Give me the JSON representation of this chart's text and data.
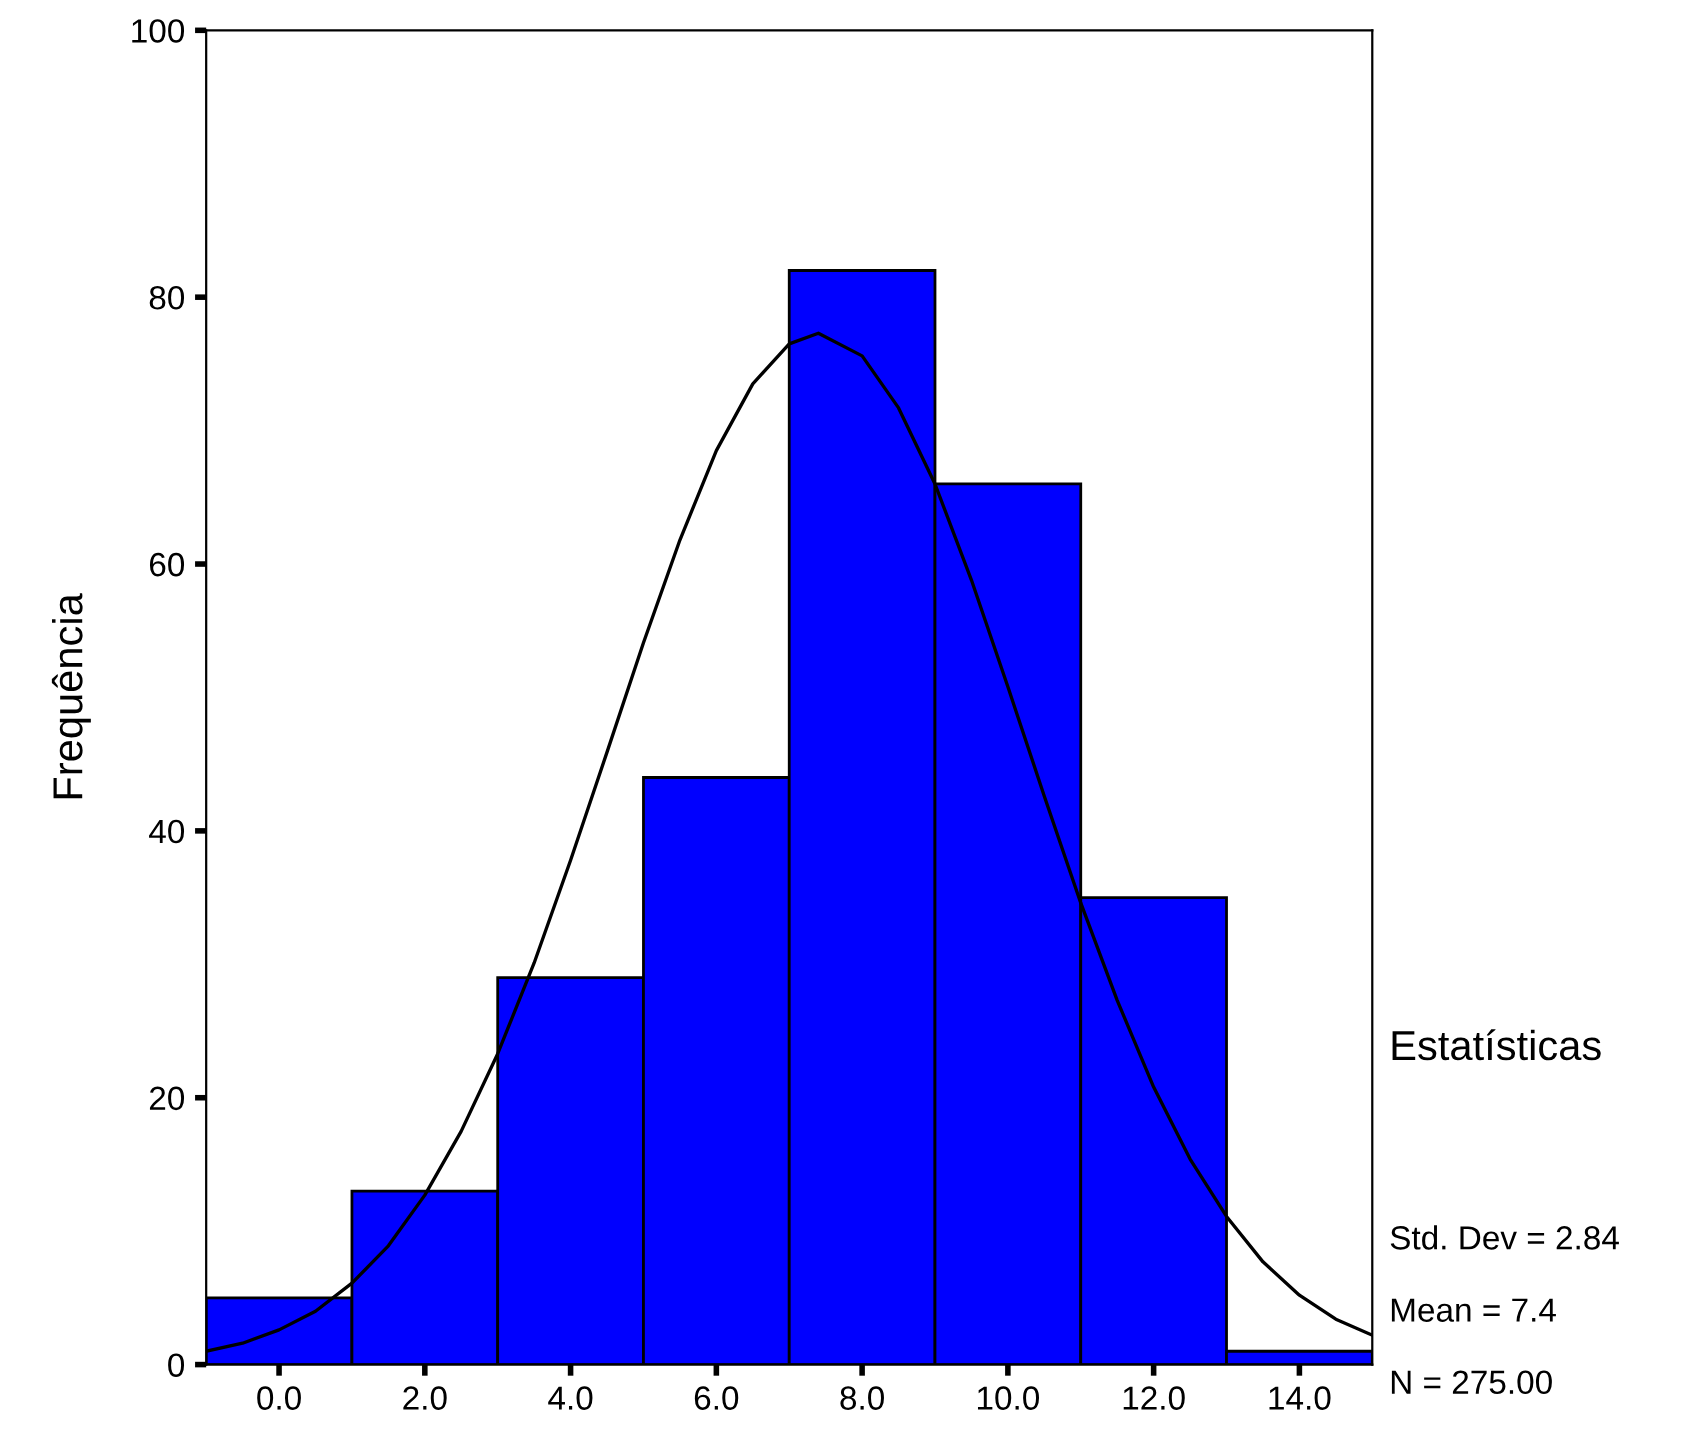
{
  "chart_data": {
    "type": "histogram",
    "ylabel": "Frequência",
    "bins": [
      -1,
      1,
      3,
      5,
      7,
      9,
      11,
      13,
      15
    ],
    "series": [
      {
        "color": "#0000ff",
        "values": [
          5,
          13,
          29,
          44,
          82,
          66,
          35,
          1
        ]
      },
      {
        "type": "line",
        "color": "#000000",
        "x": [
          -1,
          -0.5,
          0,
          0.5,
          1,
          1.5,
          2,
          2.5,
          3,
          3.5,
          4,
          4.5,
          5,
          5.5,
          6,
          6.5,
          7,
          7.4,
          8,
          8.5,
          9,
          9.5,
          10,
          10.5,
          11,
          11.5,
          12,
          12.5,
          13,
          13.5,
          14,
          14.5,
          15
        ],
        "values": [
          1,
          1.6,
          2.6,
          4,
          6.1,
          8.9,
          12.7,
          17.5,
          23.3,
          30.1,
          37.8,
          45.9,
          54.1,
          61.8,
          68.5,
          73.5,
          76.5,
          77.3,
          75.6,
          71.7,
          66,
          58.8,
          50.8,
          42.6,
          34.6,
          27.3,
          20.8,
          15.4,
          11.1,
          7.7,
          5.2,
          3.4,
          2.2
        ]
      }
    ],
    "xlim": [
      -1,
      15
    ],
    "ylim": [
      0,
      100
    ],
    "xticks": [
      {
        "value": 0,
        "label": "0.0"
      },
      {
        "value": 2,
        "label": "2.0"
      },
      {
        "value": 4,
        "label": "4.0"
      },
      {
        "value": 6,
        "label": "6.0"
      },
      {
        "value": 8,
        "label": "8.0"
      },
      {
        "value": 10,
        "label": "10.0"
      },
      {
        "value": 12,
        "label": "12.0"
      },
      {
        "value": 14,
        "label": "14.0"
      }
    ],
    "yticks": [
      0,
      20,
      40,
      60,
      80,
      100
    ],
    "grid": false,
    "legend": false,
    "annotations": [
      "Estatísticas",
      "Std. Dev = 2.84",
      "Mean = 7.4",
      "N = 275.00"
    ]
  }
}
